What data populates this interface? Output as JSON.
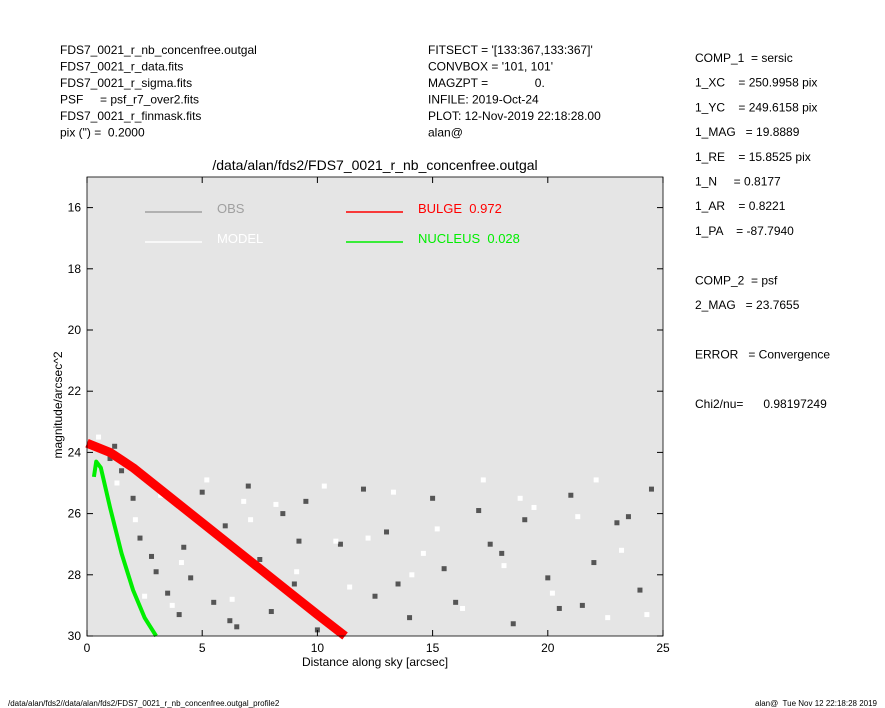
{
  "chart_data": {
    "type": "scatter",
    "title": "/data/alan/fds2/FDS7_0021_r_nb_concenfree.outgal",
    "xlabel": "Distance along sky [arcsec]",
    "ylabel": "magnitude/arcsec^2",
    "xlim": [
      0,
      25
    ],
    "ylim": [
      15,
      30
    ],
    "y_inverted": true,
    "xticks": [
      0,
      5,
      10,
      15,
      20,
      25
    ],
    "yticks": [
      16,
      18,
      20,
      22,
      24,
      26,
      28,
      30
    ],
    "background": "#e5e5e5",
    "series": [
      {
        "name": "OBS",
        "kind": "points",
        "color": "#555555",
        "legend_color": "#a0a0a0",
        "x": [
          1,
          1.5,
          2,
          2.3,
          3,
          3.5,
          4,
          4.2,
          5,
          5.5,
          6,
          6.5,
          7,
          7.5,
          8,
          8.5,
          9,
          9.5,
          10,
          11,
          12,
          12.5,
          13,
          14,
          15,
          15.5,
          16,
          17,
          18,
          18.5,
          19,
          20,
          21,
          21.5,
          22,
          23,
          24,
          24.5,
          1.2,
          2.8,
          4.5,
          6.2,
          9.2,
          13.5,
          17.5,
          20.5,
          23.5
        ],
        "values": [
          24.2,
          24.6,
          25.5,
          26.8,
          27.9,
          28.6,
          29.3,
          27.1,
          25.3,
          28.9,
          26.4,
          29.7,
          25.1,
          27.5,
          29.2,
          26.0,
          28.3,
          25.6,
          29.8,
          27.0,
          25.2,
          28.7,
          26.6,
          29.4,
          25.5,
          27.8,
          28.9,
          25.9,
          27.3,
          29.6,
          26.2,
          28.1,
          25.4,
          29.0,
          27.6,
          26.3,
          28.5,
          25.2,
          23.8,
          27.4,
          28.1,
          29.5,
          26.9,
          28.3,
          27.0,
          29.1,
          26.1
        ]
      },
      {
        "name": "MODEL",
        "kind": "points",
        "color": "#ffffff",
        "legend_color": "#ffffff",
        "x": [
          0.5,
          1.3,
          2.1,
          3.2,
          4.1,
          5.2,
          6.3,
          7.1,
          8.2,
          9.1,
          10.3,
          11.4,
          12.2,
          13.3,
          14.1,
          15.2,
          16.3,
          17.2,
          18.1,
          19.4,
          20.2,
          21.3,
          22.1,
          23.2,
          24.3,
          3.7,
          6.8,
          10.8,
          14.6,
          18.8,
          22.6,
          2.5
        ],
        "values": [
          23.5,
          25.0,
          26.2,
          25.4,
          27.6,
          24.9,
          28.8,
          26.2,
          25.7,
          27.9,
          25.1,
          28.4,
          26.8,
          25.3,
          28.0,
          26.5,
          29.1,
          24.9,
          27.7,
          25.8,
          28.6,
          26.1,
          24.9,
          27.2,
          29.3,
          29.0,
          25.6,
          26.9,
          27.3,
          25.5,
          29.4,
          28.7
        ]
      },
      {
        "name": "BULGE  0.972",
        "kind": "line",
        "color": "#ff0000",
        "legend_color": "#ff0000",
        "x": [
          0,
          1,
          2,
          3,
          4,
          5,
          6,
          7,
          8,
          9,
          10,
          11.2
        ],
        "values": [
          23.7,
          24.0,
          24.5,
          25.1,
          25.7,
          26.3,
          26.9,
          27.5,
          28.1,
          28.7,
          29.3,
          30
        ]
      },
      {
        "name": "NUCLEUS  0.028",
        "kind": "line",
        "color": "#00ee00",
        "legend_color": "#00ee00",
        "x": [
          0.3,
          0.4,
          0.6,
          1,
          1.5,
          2,
          2.5,
          3
        ],
        "values": [
          24.8,
          24.3,
          24.5,
          25.8,
          27.3,
          28.5,
          29.4,
          30
        ]
      }
    ],
    "info_left": [
      "FDS7_0021_r_nb_concenfree.outgal",
      "FDS7_0021_r_data.fits",
      "FDS7_0021_r_sigma.fits",
      "PSF     = psf_r7_over2.fits",
      "FDS7_0021_r_finmask.fits",
      "pix (\") =  0.2000"
    ],
    "info_middle": [
      "FITSECT = '[133:367,133:367]'",
      "CONVBOX = '101, 101'",
      "MAGZPT =              0.",
      "INFILE: 2019-Oct-24",
      "PLOT: 12-Nov-2019 22:18:28.00",
      "alan@"
    ],
    "info_right": [
      "COMP_1  = sersic",
      "1_XC    = 250.9958 pix",
      "1_YC    = 249.6158 pix",
      "1_MAG   = 19.8889",
      "1_RE    = 15.8525 pix",
      "1_N     = 0.8177",
      "1_AR    = 0.8221",
      "1_PA    = -87.7940",
      "",
      "COMP_2  = psf",
      "2_MAG   = 23.7655",
      "",
      "ERROR   = Convergence",
      "",
      "Chi2/nu=      0.98197249"
    ],
    "footer_left": "/data/alan/fds2//data/alan/fds2/FDS7_0021_r_nb_concenfree.outgal_profile2",
    "footer_right": "alan@  Tue Nov 12 22:18:28 2019"
  }
}
